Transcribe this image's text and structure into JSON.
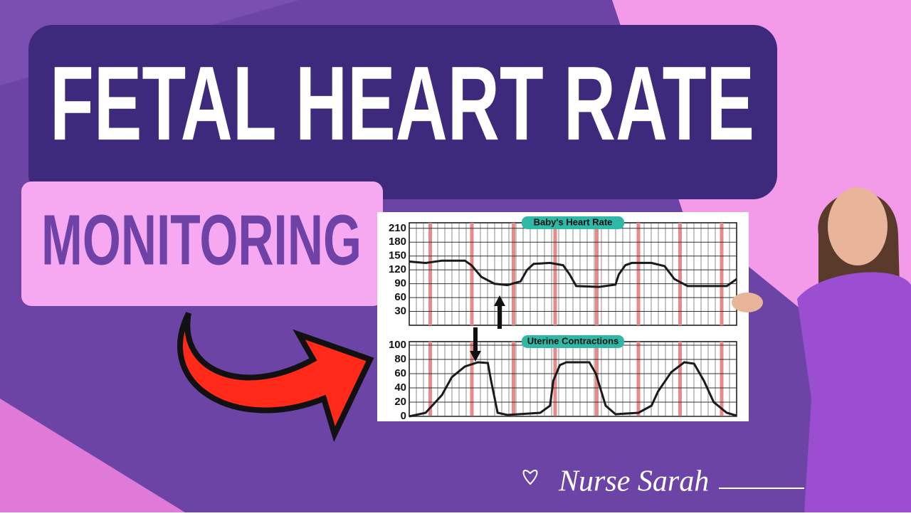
{
  "title": "FETAL HEART RATE",
  "subtitle": "MONITORING",
  "brand": "Nurse Sarah",
  "chart_data": [
    {
      "type": "line",
      "title": "Baby's Heart Rate",
      "color": "#1a1a1a",
      "x": [
        0,
        5,
        10,
        17,
        19,
        22,
        26,
        30,
        34,
        36,
        38,
        43,
        47,
        49,
        51,
        58,
        63,
        64,
        66,
        68,
        74,
        78,
        81,
        85,
        92,
        97,
        100
      ],
      "values": [
        138,
        135,
        140,
        140,
        130,
        105,
        90,
        87,
        95,
        120,
        133,
        135,
        130,
        110,
        85,
        83,
        88,
        110,
        130,
        135,
        135,
        128,
        100,
        85,
        85,
        85,
        100
      ],
      "xlim": [
        0,
        100
      ],
      "ylim": [
        0,
        222
      ],
      "yticks": [
        30,
        60,
        90,
        120,
        150,
        180,
        210
      ],
      "grid": true
    },
    {
      "type": "line",
      "title": "Uterine Contractions",
      "color": "#1a1a1a",
      "x": [
        0,
        5,
        10,
        13,
        17,
        21,
        24,
        25,
        27,
        30,
        40,
        43,
        44,
        46,
        48,
        55,
        57,
        60,
        63,
        70,
        74,
        76,
        80,
        84,
        87,
        90,
        93,
        97,
        100
      ],
      "values": [
        0,
        5,
        30,
        55,
        70,
        76,
        75,
        50,
        5,
        2,
        5,
        15,
        50,
        72,
        76,
        76,
        60,
        15,
        3,
        5,
        15,
        35,
        62,
        76,
        74,
        50,
        20,
        5,
        1
      ],
      "xlim": [
        0,
        100
      ],
      "ylim": [
        0,
        105
      ],
      "yticks": [
        0,
        20,
        40,
        60,
        80,
        100
      ],
      "grid": true
    }
  ]
}
